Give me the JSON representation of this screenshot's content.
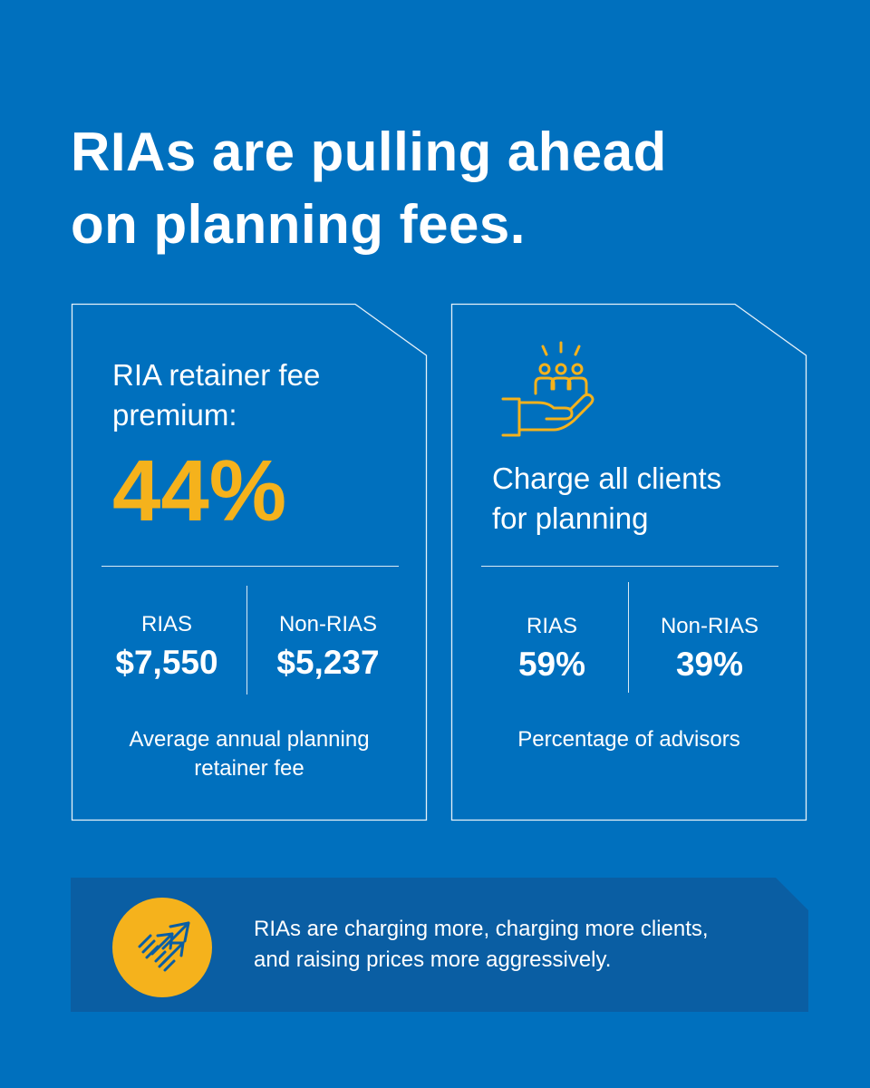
{
  "title": {
    "line1": "RIAs are pulling ahead",
    "line2": "on planning fees."
  },
  "card_left": {
    "label_line1": "RIA retainer fee",
    "label_line2": "premium:",
    "premium": "44%",
    "col1_label": "RIAS",
    "col1_value": "$7,550",
    "col2_label": "Non-RIAS",
    "col2_value": "$5,237",
    "caption_line1": "Average annual planning",
    "caption_line2": "retainer fee"
  },
  "card_right": {
    "icon": "hand-holding-clients-icon",
    "label_line1": "Charge all clients",
    "label_line2": "for planning",
    "col1_label": "RIAS",
    "col1_value": "59%",
    "col2_label": "Non-RIAS",
    "col2_value": "39%",
    "caption": "Percentage of advisors"
  },
  "banner": {
    "icon": "growth-arrows-icon",
    "line1": "RIAs are charging more, charging more clients,",
    "line2": "and raising prices more aggressively."
  },
  "colors": {
    "background": "#0070BE",
    "accent": "#F5B21C",
    "banner": "#0A5EA3",
    "text": "#FFFFFF"
  }
}
